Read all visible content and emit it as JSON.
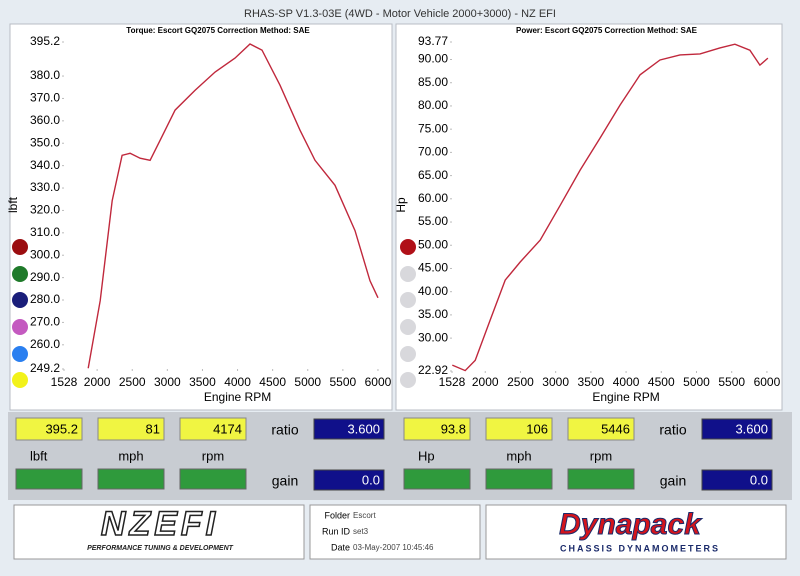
{
  "header": {
    "title": "RHAS-SP V1.3-03E  (4WD - Motor Vehicle 2000+3000) - NZ EFI"
  },
  "chart_data": [
    {
      "type": "line",
      "subtitle": "Torque: Escort GQ2075     Correction Method: SAE",
      "x_label": "Engine RPM",
      "y_label": "lbft",
      "color": "#c0283c",
      "x": [
        1872,
        2043,
        2214,
        2356,
        2470,
        2612,
        2754,
        2897,
        3110,
        3395,
        3680,
        3964,
        4178,
        4349,
        4605,
        4890,
        5103,
        5388,
        5673,
        5886,
        6000
      ],
      "values": [
        249.5,
        279.7,
        324.4,
        344.6,
        345.5,
        343.3,
        342.4,
        351.3,
        364.8,
        373.7,
        381.8,
        388.0,
        394.3,
        391.6,
        375.9,
        355.8,
        342.4,
        331.2,
        311.0,
        288.6,
        281.0
      ],
      "xlim": [
        1528,
        6200
      ],
      "ylim": [
        249.2,
        395.2
      ],
      "xticks": [
        1528,
        2000,
        2500,
        3000,
        3500,
        4000,
        4500,
        5000,
        5500,
        6000
      ],
      "yticks": [
        249.2,
        {
          "value": 260,
          "label": "260.0"
        },
        {
          "value": 270,
          "label": "270.0"
        },
        {
          "value": 280,
          "label": "280.0"
        },
        {
          "value": 290,
          "label": "290.0"
        },
        {
          "value": 300,
          "label": "300.0"
        },
        {
          "value": 310,
          "label": "310.0"
        },
        {
          "value": 320,
          "label": "320.0"
        },
        {
          "value": 330,
          "label": "330.0"
        },
        {
          "value": 340,
          "label": "340.0"
        },
        {
          "value": 350,
          "label": "350.0"
        },
        {
          "value": 360,
          "label": "360.0"
        },
        {
          "value": 370,
          "label": "370.0"
        },
        {
          "value": 380,
          "label": "380.0"
        },
        395.2
      ]
    },
    {
      "type": "line",
      "subtitle": "Power: Escort GQ2075     Correction Method: SAE",
      "x_label": "Engine RPM",
      "y_label": "Hp",
      "color": "#c0283c",
      "x": [
        1532,
        1716,
        1858,
        2071,
        2284,
        2496,
        2780,
        3064,
        3348,
        3631,
        3915,
        4199,
        4482,
        4766,
        5050,
        5333,
        5546,
        5759,
        5901,
        6014
      ],
      "values": [
        24.2,
        23.0,
        25.2,
        33.9,
        42.5,
        46.4,
        51.1,
        58.6,
        66.2,
        73.1,
        80.2,
        86.7,
        89.9,
        91.0,
        91.2,
        92.5,
        93.3,
        92.0,
        88.8,
        90.3
      ],
      "xlim": [
        1528,
        6200
      ],
      "ylim": [
        22.92,
        93.77
      ],
      "xticks": [
        1528,
        2000,
        2500,
        3000,
        3500,
        4000,
        4500,
        5000,
        5500,
        6000
      ],
      "yticks": [
        22.92,
        {
          "value": 30,
          "label": "30.00"
        },
        {
          "value": 35,
          "label": "35.00"
        },
        {
          "value": 40,
          "label": "40.00"
        },
        {
          "value": 45,
          "label": "45.00"
        },
        {
          "value": 50,
          "label": "50.00"
        },
        {
          "value": 55,
          "label": "55.00"
        },
        {
          "value": 60,
          "label": "60.00"
        },
        {
          "value": 65,
          "label": "65.00"
        },
        {
          "value": 70,
          "label": "70.00"
        },
        {
          "value": 75,
          "label": "75.00"
        },
        {
          "value": 80,
          "label": "80.00"
        },
        {
          "value": 85,
          "label": "85.00"
        },
        {
          "value": 90,
          "label": "90.00"
        },
        93.77
      ]
    }
  ],
  "readout": [
    {
      "values": [
        "395.2",
        "81",
        "4174"
      ],
      "units": [
        "lbft",
        "mph",
        "rpm"
      ],
      "ratio_label": "ratio",
      "ratio": "3.600",
      "gain_label": "gain",
      "gain": "0.0"
    },
    {
      "values": [
        "93.8",
        "106",
        "5446"
      ],
      "units": [
        "Hp",
        "mph",
        "rpm"
      ],
      "ratio_label": "ratio",
      "ratio": "3.600",
      "gain_label": "gain",
      "gain": "0.0"
    }
  ],
  "footer": {
    "logo": "NZEFI",
    "logo_tagline": "PERFORMANCE TUNING & DEVELOPMENT",
    "folder_label": "Folder",
    "folder": "Escort",
    "run_label": "Run ID",
    "run": "set3",
    "date_label": "Date",
    "date": "03-May-2007  10:45:46",
    "brand": "Dynapack",
    "brand_tagline": "CHASSIS DYNAMOMETERS"
  }
}
